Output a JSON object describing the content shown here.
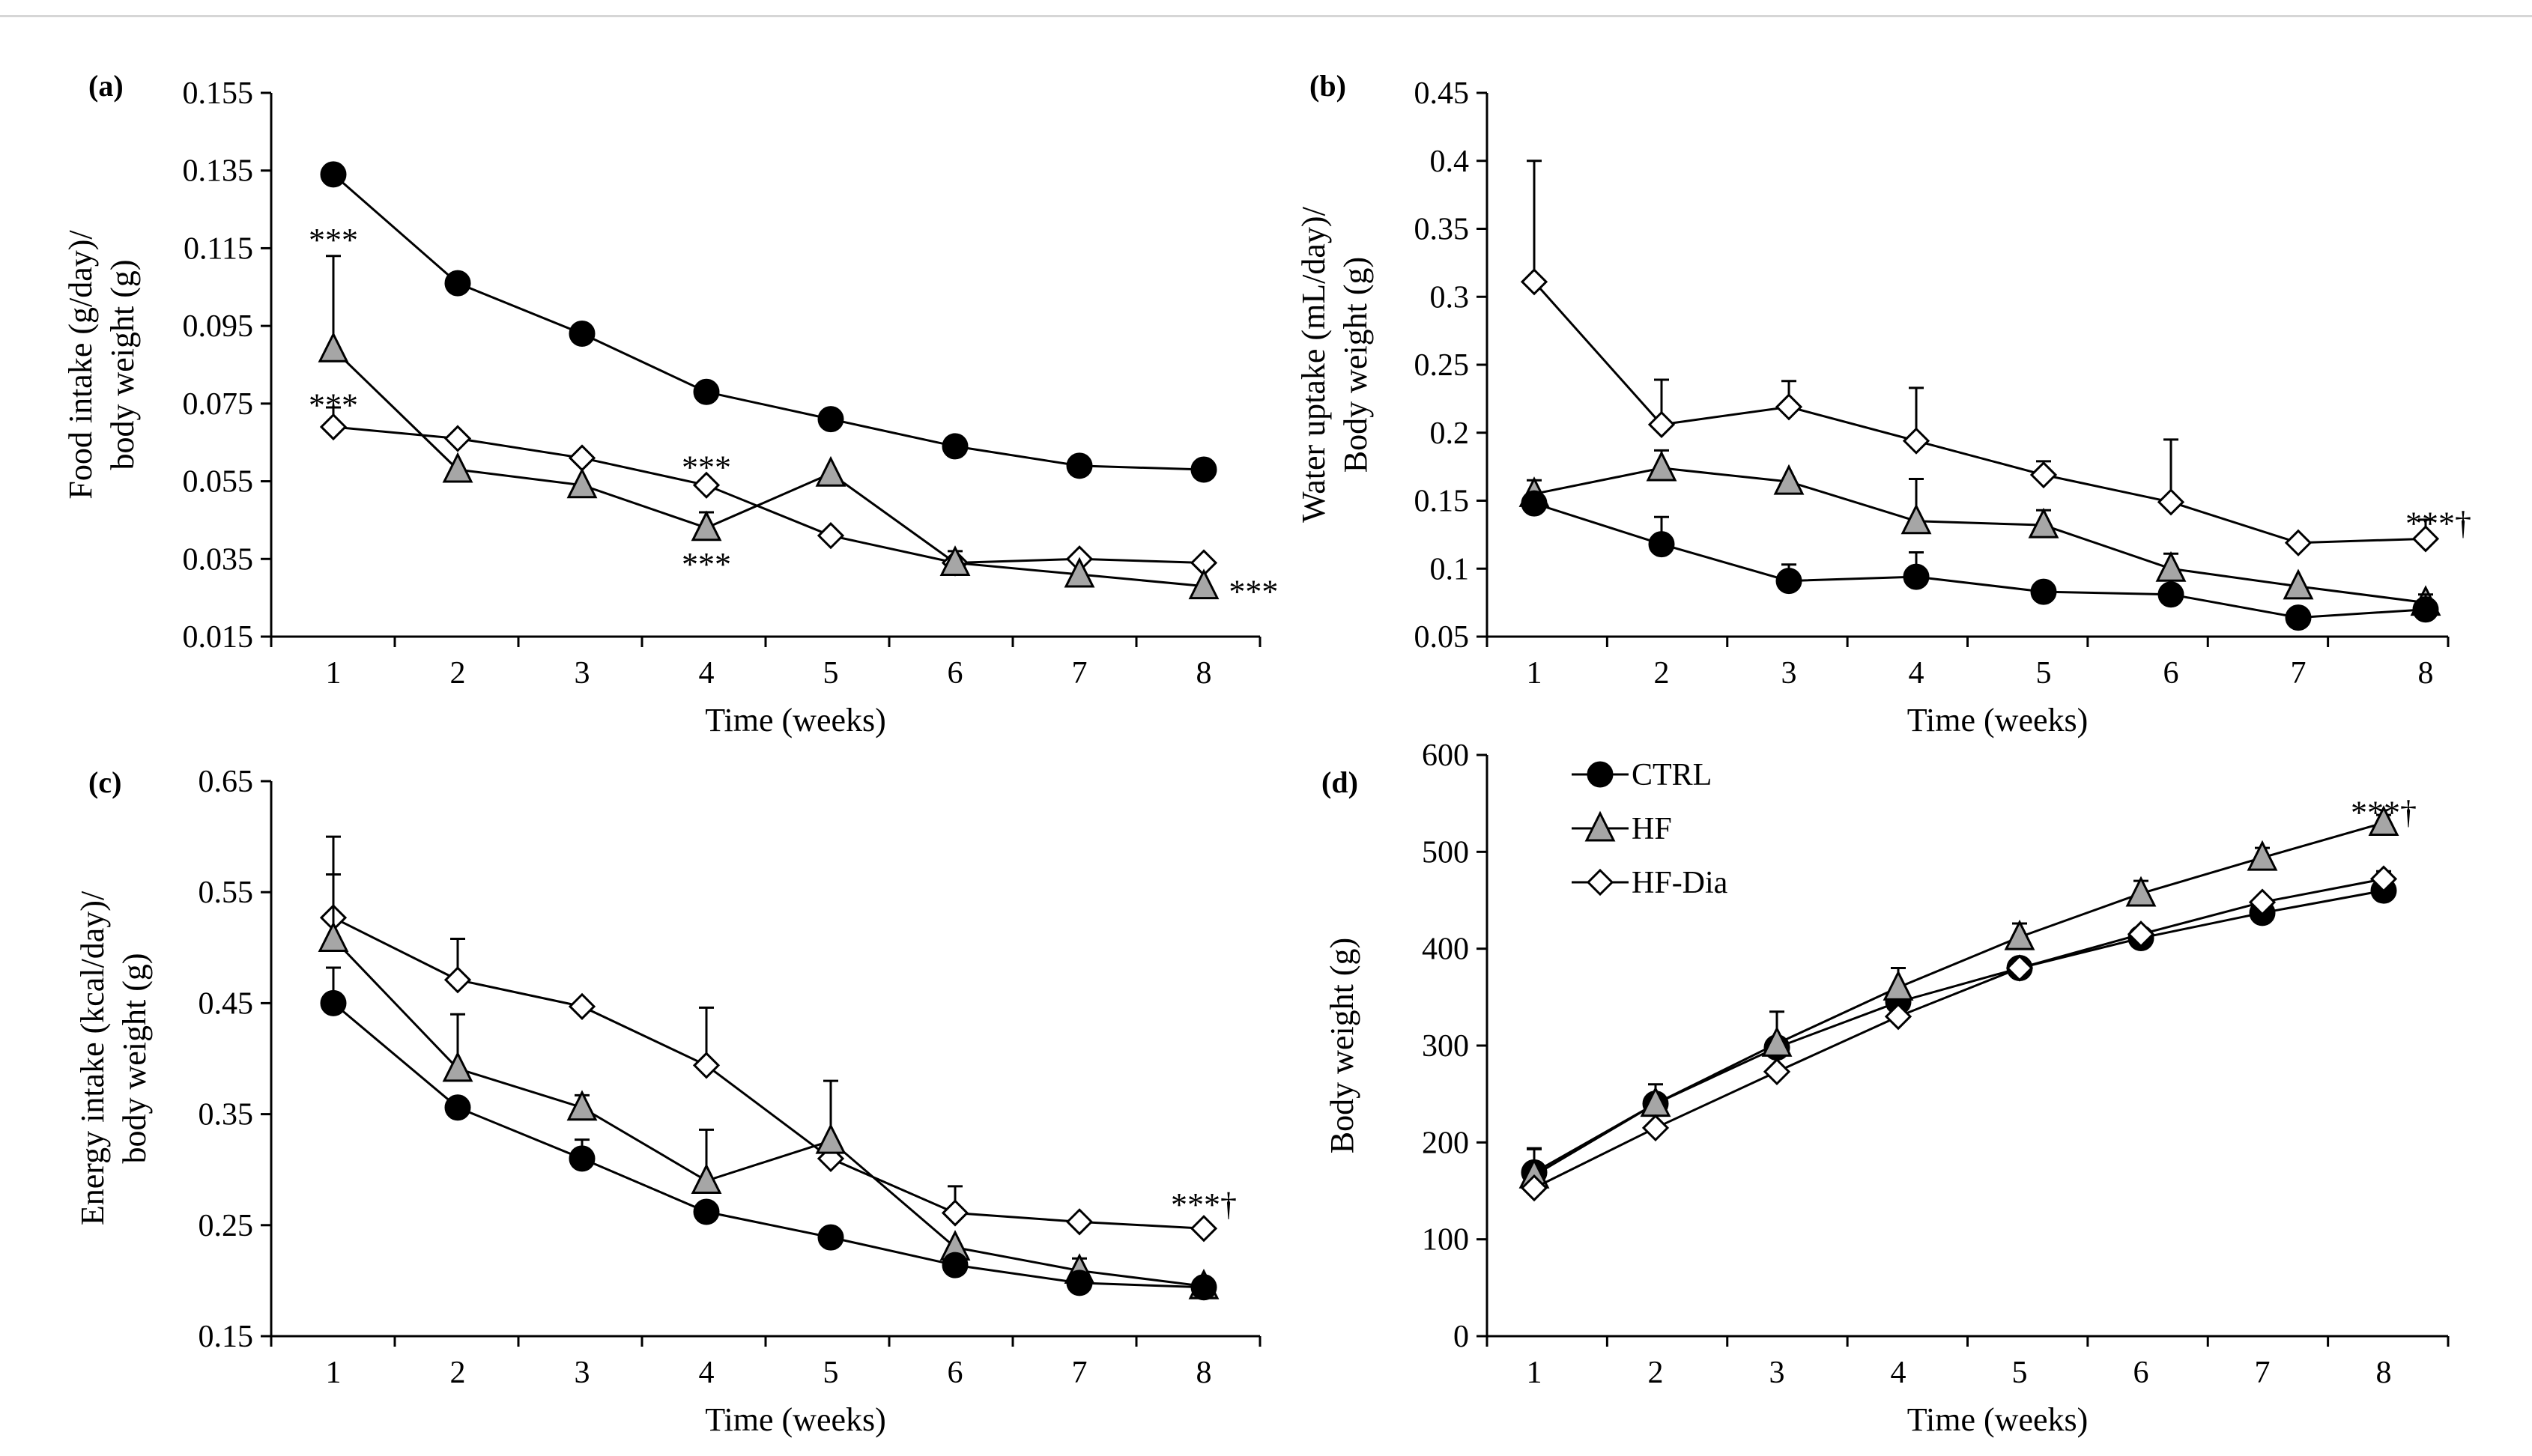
{
  "colors": {
    "ctrl": "#000000",
    "hf": "#a6a6a6",
    "hfdia": "#ffffff",
    "stroke": "#000000"
  },
  "legend": [
    {
      "key": "ctrl",
      "label": "CTRL",
      "marker": "circle"
    },
    {
      "key": "hf",
      "label": "HF",
      "marker": "triangle"
    },
    {
      "key": "hfdia",
      "label": "HF-Dia",
      "marker": "diamond"
    }
  ],
  "chart_data": [
    {
      "id": "a",
      "panel_label": "(a)",
      "type": "line",
      "ylabel": [
        "Food intake (g/day)/",
        "body weight (g)"
      ],
      "xlabel": "Time (weeks)",
      "x": [
        1,
        2,
        3,
        4,
        5,
        6,
        7,
        8
      ],
      "ylim": [
        0.015,
        0.155
      ],
      "yticks": [
        0.015,
        0.035,
        0.055,
        0.075,
        0.095,
        0.115,
        0.135,
        0.155
      ],
      "ytick_labels": [
        "0.015",
        "0.035",
        "0.055",
        "0.075",
        "0.095",
        "0.115",
        "0.135",
        "0.155"
      ],
      "series": [
        {
          "key": "ctrl",
          "name": "CTRL",
          "values": [
            0.134,
            0.106,
            0.093,
            0.078,
            0.071,
            0.064,
            0.059,
            0.058
          ],
          "err": [
            0,
            0,
            0,
            0,
            0,
            0,
            0,
            0
          ]
        },
        {
          "key": "hfdia",
          "name": "HF-Dia",
          "values": [
            0.069,
            0.066,
            0.061,
            0.054,
            0.041,
            0.034,
            0.035,
            0.034
          ],
          "err": [
            0.005,
            0,
            0,
            0,
            0,
            0.003,
            0,
            0
          ]
        },
        {
          "key": "hf",
          "name": "HF",
          "values": [
            0.089,
            0.058,
            0.054,
            0.043,
            0.057,
            0.034,
            0.031,
            0.028
          ],
          "err": [
            0.024,
            0,
            0,
            0.004,
            0,
            0,
            0,
            0
          ]
        }
      ],
      "annotations": [
        {
          "text": "***",
          "x": 1,
          "y": 0.117
        },
        {
          "text": "***",
          "x": 1,
          "y": 0.0745
        },
        {
          "text": "***",
          "x": 4,
          "y": 0.0585
        },
        {
          "text": "***",
          "x": 4,
          "y": 0.0335
        },
        {
          "text": "***",
          "x": 8.4,
          "y": 0.0265
        }
      ]
    },
    {
      "id": "b",
      "panel_label": "(b)",
      "type": "line",
      "ylabel": [
        "Water uptake (mL/day)/",
        "Body weight (g)"
      ],
      "xlabel": "Time (weeks)",
      "x": [
        1,
        2,
        3,
        4,
        5,
        6,
        7,
        8
      ],
      "ylim": [
        0.05,
        0.45
      ],
      "yticks": [
        0.05,
        0.1,
        0.15,
        0.2,
        0.25,
        0.3,
        0.35,
        0.4,
        0.45
      ],
      "ytick_labels": [
        "0.05",
        "0.1",
        "0.15",
        "0.2",
        "0.25",
        "0.3",
        "0.35",
        "0.4",
        "0.45"
      ],
      "series": [
        {
          "key": "hfdia",
          "name": "HF-Dia",
          "values": [
            0.311,
            0.206,
            0.219,
            0.194,
            0.169,
            0.149,
            0.119,
            0.122
          ],
          "err": [
            0.089,
            0.033,
            0.019,
            0.039,
            0.01,
            0.046,
            0,
            0.014
          ]
        },
        {
          "key": "hf",
          "name": "HF",
          "values": [
            0.155,
            0.174,
            0.164,
            0.135,
            0.132,
            0.1,
            0.087,
            0.075
          ],
          "err": [
            0.01,
            0.013,
            0,
            0.031,
            0.011,
            0.011,
            0,
            0
          ]
        },
        {
          "key": "ctrl",
          "name": "CTRL",
          "values": [
            0.148,
            0.118,
            0.091,
            0.094,
            0.083,
            0.081,
            0.064,
            0.07
          ],
          "err": [
            0,
            0.02,
            0.012,
            0.018,
            0,
            0,
            0.007,
            0.011
          ]
        }
      ],
      "annotations": [
        {
          "text": "***†",
          "x": 8.1,
          "y": 0.133
        }
      ]
    },
    {
      "id": "c",
      "panel_label": "(c)",
      "type": "line",
      "ylabel": [
        "Energy intake (kcal/day)/",
        "body weight (g)"
      ],
      "xlabel": "Time (weeks)",
      "x": [
        1,
        2,
        3,
        4,
        5,
        6,
        7,
        8
      ],
      "ylim": [
        0.15,
        0.65
      ],
      "yticks": [
        0.15,
        0.25,
        0.35,
        0.45,
        0.55,
        0.65
      ],
      "ytick_labels": [
        "0.15",
        "0.25",
        "0.35",
        "0.45",
        "0.55",
        "0.65"
      ],
      "series": [
        {
          "key": "hfdia",
          "name": "HF-Dia",
          "values": [
            0.527,
            0.471,
            0.447,
            0.394,
            0.31,
            0.261,
            0.253,
            0.247
          ],
          "err": [
            0.073,
            0.037,
            0,
            0.052,
            0,
            0.024,
            0,
            0
          ]
        },
        {
          "key": "hf",
          "name": "HF",
          "values": [
            0.508,
            0.391,
            0.356,
            0.29,
            0.326,
            0.23,
            0.209,
            0.195
          ],
          "err": [
            0.058,
            0.049,
            0.011,
            0.046,
            0.054,
            0,
            0.011,
            0
          ]
        },
        {
          "key": "ctrl",
          "name": "CTRL",
          "values": [
            0.45,
            0.356,
            0.31,
            0.262,
            0.239,
            0.214,
            0.198,
            0.194
          ],
          "err": [
            0.032,
            0,
            0.017,
            0,
            0,
            0,
            0,
            0
          ]
        }
      ],
      "annotations": [
        {
          "text": "***†",
          "x": 8,
          "y": 0.268
        }
      ]
    },
    {
      "id": "d",
      "panel_label": "(d)",
      "type": "line",
      "ylabel": [
        "Body weight (g)"
      ],
      "xlabel": "Time (weeks)",
      "x": [
        1,
        2,
        3,
        4,
        5,
        6,
        7,
        8
      ],
      "ylim": [
        0,
        600
      ],
      "yticks": [
        0,
        100,
        200,
        300,
        400,
        500,
        600
      ],
      "ytick_labels": [
        "0",
        "100",
        "200",
        "300",
        "400",
        "500",
        "600"
      ],
      "series": [
        {
          "key": "ctrl",
          "name": "CTRL",
          "values": [
            169,
            240,
            298,
            345,
            380,
            411,
            437,
            460
          ],
          "err": [
            25,
            20,
            0,
            0,
            0,
            8,
            0,
            0
          ]
        },
        {
          "key": "hf",
          "name": "HF",
          "values": [
            166,
            240,
            302,
            360,
            412,
            457,
            494,
            530
          ],
          "err": [
            27,
            0,
            33,
            20,
            14,
            13,
            10,
            8
          ]
        },
        {
          "key": "hfdia",
          "name": "HF-Dia",
          "values": [
            153,
            215,
            273,
            330,
            380,
            415,
            448,
            472
          ],
          "err": [
            0,
            0,
            0,
            0,
            0,
            0,
            0,
            8
          ]
        }
      ],
      "annotations": [
        {
          "text": "***†",
          "x": 8,
          "y": 540
        }
      ],
      "show_legend": true
    }
  ]
}
